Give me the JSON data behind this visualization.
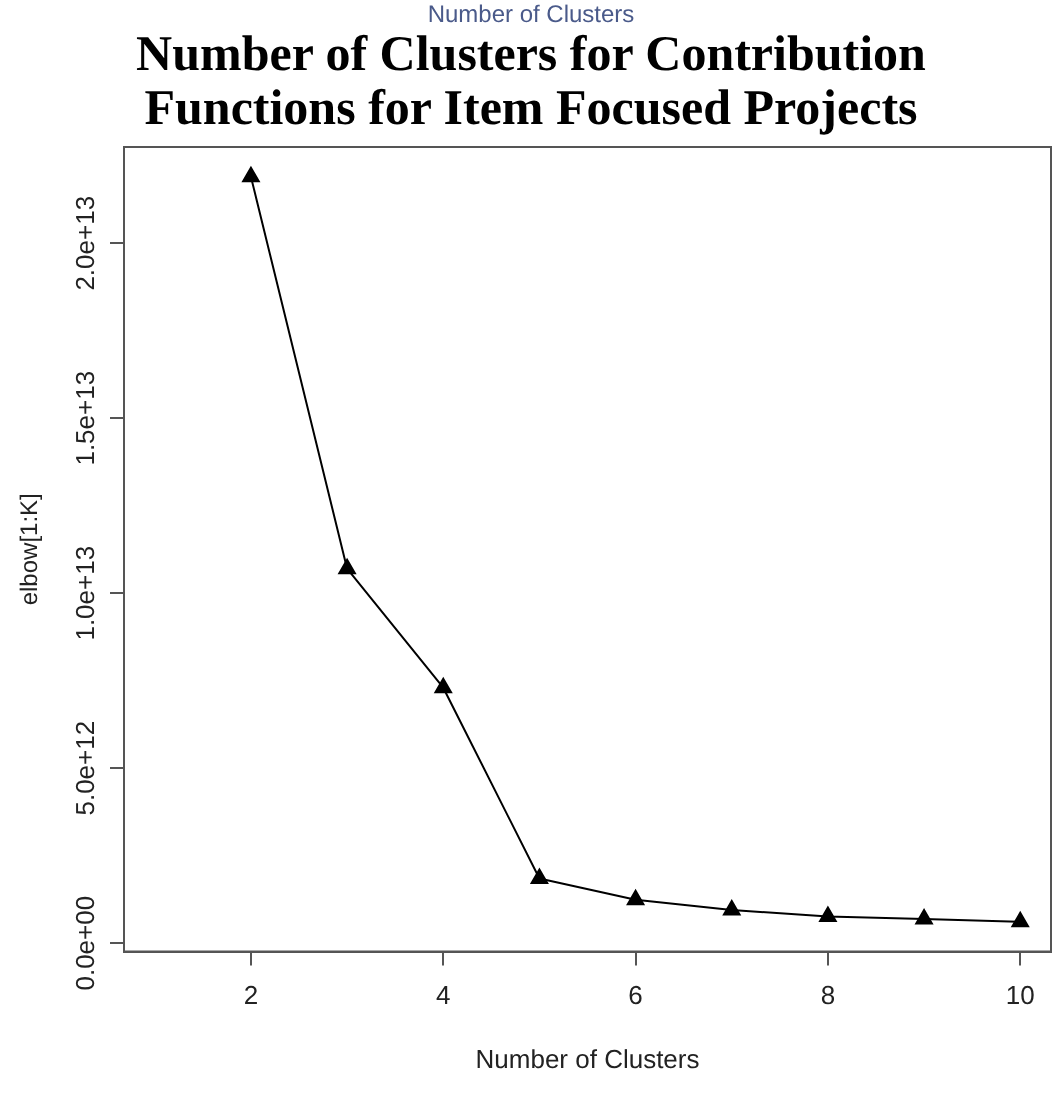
{
  "chart_data": {
    "type": "line",
    "title": "Number of Clusters for Contribution Functions for Item Focused Projects",
    "annotations": [
      "Number of Clusters"
    ],
    "xlabel": "Number of Clusters",
    "ylabel": "elbow[1:K]",
    "x": [
      2,
      3,
      4,
      5,
      6,
      7,
      8,
      9,
      10
    ],
    "series": [
      {
        "color": "#000000",
        "values": [
          21900000000000.0,
          10700000000000.0,
          7300000000000.0,
          1850000000000.0,
          1240000000000.0,
          950000000000.0,
          760000000000.0,
          690000000000.0,
          610000000000.0
        ]
      }
    ],
    "xlim": [
      0.68,
      10.32
    ],
    "xticks": [
      2,
      4,
      6,
      8,
      10
    ],
    "ylim": [
      -240000000000.0,
      22750000000000.0
    ],
    "yticks": [
      {
        "value": 0,
        "label": "0.0e+00"
      },
      {
        "value": 5000000000000.0,
        "label": "5.0e+12"
      },
      {
        "value": 10000000000000.0,
        "label": "1.0e+13"
      },
      {
        "value": 15000000000000.0,
        "label": "1.5e+13"
      },
      {
        "value": 20000000000000.0,
        "label": "2.0e+13"
      }
    ],
    "grid": false,
    "legend": false,
    "marker": "triangle",
    "line_style": "solid"
  }
}
